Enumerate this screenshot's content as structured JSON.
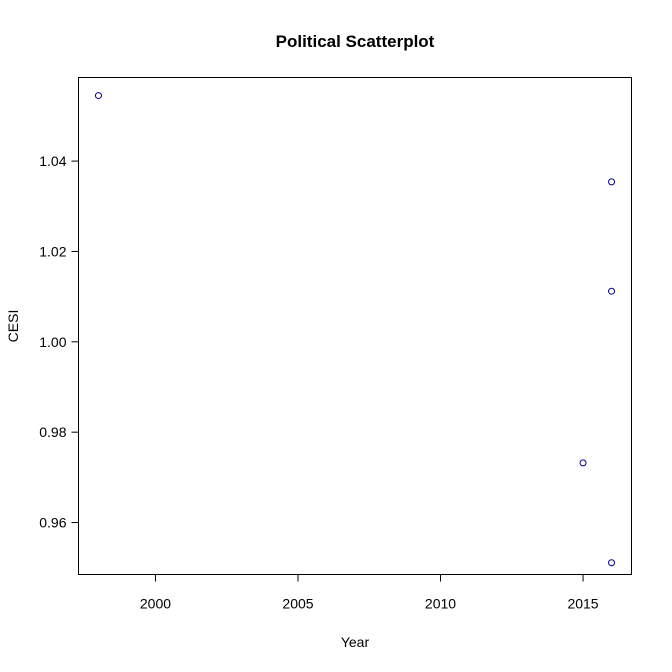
{
  "chart_data": {
    "type": "scatter",
    "title": "Political Scatterplot",
    "xlabel": "Year",
    "ylabel": "CESI",
    "xlim": [
      1997.3,
      2016.7
    ],
    "ylim": [
      0.9485,
      1.0585
    ],
    "xticks": [
      2000,
      2005,
      2010,
      2015
    ],
    "xtick_labels": [
      "2000",
      "2005",
      "2010",
      "2015"
    ],
    "yticks": [
      0.96,
      0.98,
      1.0,
      1.02,
      1.04
    ],
    "ytick_labels": [
      "0.96",
      "0.98",
      "1.00",
      "1.02",
      "1.04"
    ],
    "grid": false,
    "legend": "none",
    "point_color": "#00008b",
    "series": [
      {
        "points": [
          {
            "x": 1998,
            "y": 1.0545
          },
          {
            "x": 2016,
            "y": 1.0354
          },
          {
            "x": 2016,
            "y": 1.0112
          },
          {
            "x": 2015,
            "y": 0.9732
          },
          {
            "x": 2016,
            "y": 0.9511
          }
        ]
      }
    ]
  }
}
